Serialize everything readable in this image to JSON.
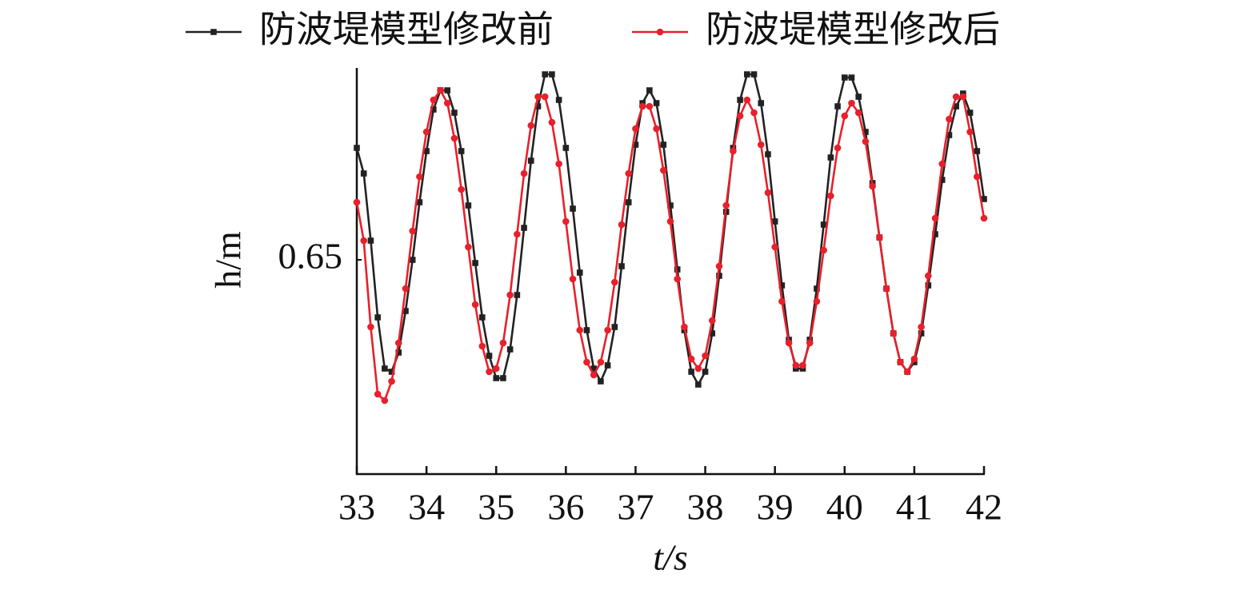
{
  "chart_data": {
    "type": "line",
    "xlabel": "t/s",
    "ylabel": "h/m",
    "x": [
      33.0,
      33.1,
      33.2,
      33.3,
      33.4,
      33.5,
      33.6,
      33.7,
      33.8,
      33.9,
      34.0,
      34.1,
      34.2,
      34.3,
      34.4,
      34.5,
      34.6,
      34.7,
      34.8,
      34.9,
      35.0,
      35.1,
      35.2,
      35.3,
      35.4,
      35.5,
      35.6,
      35.7,
      35.8,
      35.9,
      36.0,
      36.1,
      36.2,
      36.3,
      36.4,
      36.5,
      36.6,
      36.7,
      36.8,
      36.9,
      37.0,
      37.1,
      37.2,
      37.3,
      37.4,
      37.5,
      37.6,
      37.7,
      37.8,
      37.9,
      38.0,
      38.1,
      38.2,
      38.3,
      38.4,
      38.5,
      38.6,
      38.7,
      38.8,
      38.9,
      39.0,
      39.1,
      39.2,
      39.3,
      39.4,
      39.5,
      39.6,
      39.7,
      39.8,
      39.9,
      40.0,
      40.1,
      40.2,
      40.3,
      40.4,
      40.5,
      40.6,
      40.7,
      40.8,
      40.9,
      41.0,
      41.1,
      41.2,
      41.3,
      41.4,
      41.5,
      41.6,
      41.7,
      41.8,
      41.9,
      42.0
    ],
    "series": [
      {
        "name": "防波堤模型修改前",
        "color": "#222222",
        "marker": "square",
        "values": [
          0.685,
          0.677,
          0.656,
          0.632,
          0.616,
          0.615,
          0.621,
          0.634,
          0.65,
          0.668,
          0.684,
          0.697,
          0.703,
          0.703,
          0.696,
          0.684,
          0.667,
          0.649,
          0.632,
          0.62,
          0.613,
          0.613,
          0.622,
          0.639,
          0.66,
          0.681,
          0.698,
          0.708,
          0.708,
          0.7,
          0.685,
          0.666,
          0.646,
          0.628,
          0.616,
          0.612,
          0.617,
          0.629,
          0.648,
          0.668,
          0.686,
          0.699,
          0.703,
          0.699,
          0.686,
          0.667,
          0.647,
          0.628,
          0.615,
          0.611,
          0.615,
          0.627,
          0.645,
          0.665,
          0.685,
          0.7,
          0.708,
          0.708,
          0.699,
          0.683,
          0.662,
          0.642,
          0.625,
          0.616,
          0.616,
          0.625,
          0.641,
          0.661,
          0.682,
          0.698,
          0.707,
          0.707,
          0.701,
          0.69,
          0.674,
          0.657,
          0.641,
          0.627,
          0.618,
          0.615,
          0.618,
          0.627,
          0.642,
          0.658,
          0.675,
          0.689,
          0.698,
          0.702,
          0.696,
          0.684,
          0.669
        ]
      },
      {
        "name": "防波堤模型修改后",
        "color": "#e8202a",
        "marker": "circle",
        "values": [
          0.668,
          0.656,
          0.629,
          0.608,
          0.606,
          0.612,
          0.624,
          0.641,
          0.659,
          0.676,
          0.69,
          0.7,
          0.703,
          0.699,
          0.688,
          0.672,
          0.654,
          0.636,
          0.623,
          0.615,
          0.616,
          0.624,
          0.639,
          0.658,
          0.677,
          0.692,
          0.701,
          0.701,
          0.693,
          0.68,
          0.662,
          0.644,
          0.628,
          0.618,
          0.614,
          0.618,
          0.628,
          0.643,
          0.661,
          0.677,
          0.691,
          0.698,
          0.698,
          0.691,
          0.678,
          0.662,
          0.644,
          0.629,
          0.619,
          0.616,
          0.62,
          0.631,
          0.648,
          0.667,
          0.684,
          0.695,
          0.7,
          0.696,
          0.686,
          0.671,
          0.654,
          0.637,
          0.624,
          0.617,
          0.617,
          0.624,
          0.637,
          0.653,
          0.67,
          0.685,
          0.695,
          0.699,
          0.696,
          0.687,
          0.673,
          0.657,
          0.641,
          0.627,
          0.618,
          0.615,
          0.619,
          0.629,
          0.645,
          0.663,
          0.68,
          0.694,
          0.701,
          0.701,
          0.69,
          0.676,
          0.663
        ]
      }
    ],
    "xlim": [
      33,
      42
    ],
    "xticks": [
      33,
      34,
      35,
      36,
      37,
      38,
      39,
      40,
      41,
      42
    ],
    "ylim": [
      0.583,
      0.71
    ],
    "yticks": [
      0.65
    ],
    "legend": "top",
    "grid": false
  }
}
